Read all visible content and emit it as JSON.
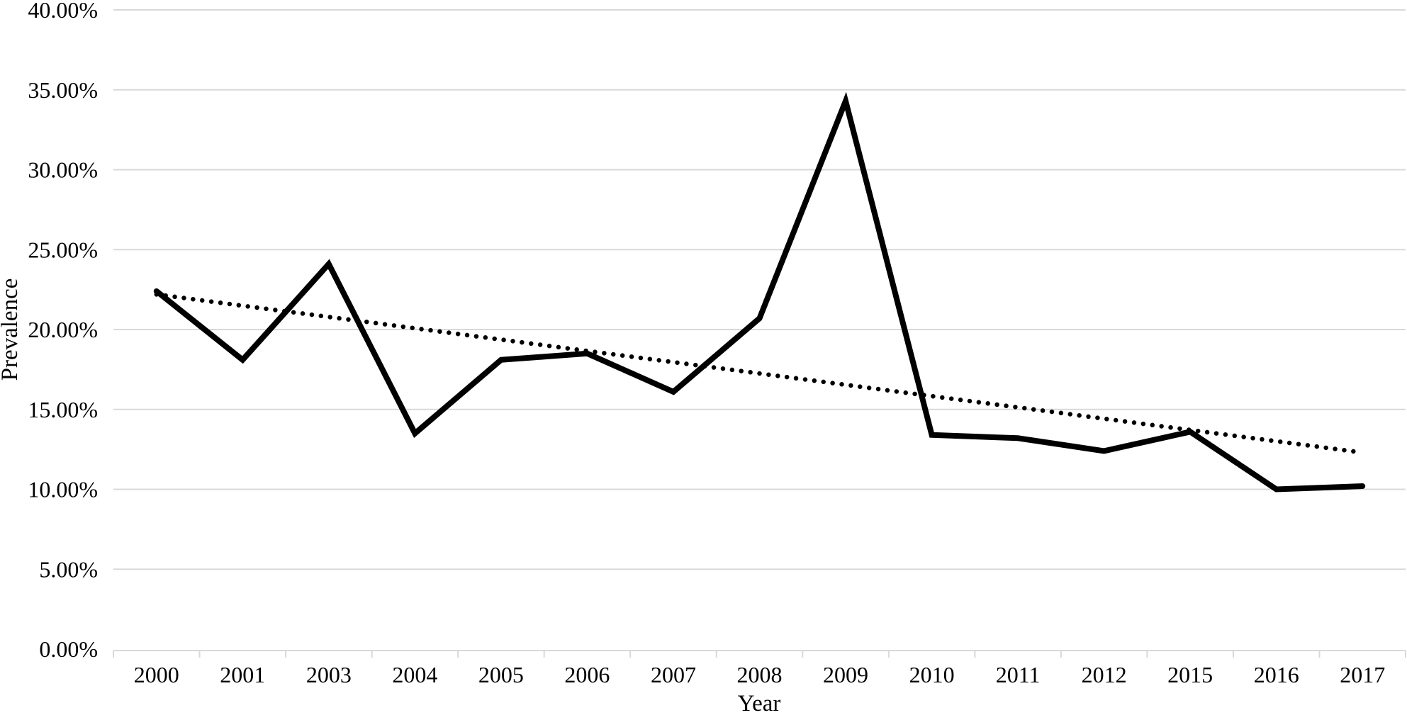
{
  "page": {
    "background": "#ffffff"
  },
  "chart_data": {
    "type": "line",
    "title": "",
    "xlabel": "Year",
    "ylabel": "Prevalence",
    "categories": [
      "2000",
      "2001",
      "2003",
      "2004",
      "2005",
      "2006",
      "2007",
      "2008",
      "2009",
      "2010",
      "2011",
      "2012",
      "2015",
      "2016",
      "2017"
    ],
    "series": [
      {
        "name": "Prevalence",
        "line_style": "solid",
        "color": "#000000",
        "values": [
          22.4,
          18.1,
          24.1,
          13.5,
          18.1,
          18.5,
          16.1,
          20.7,
          34.3,
          13.4,
          13.2,
          12.4,
          13.6,
          10.0,
          10.2
        ]
      },
      {
        "name": "Linear trendline",
        "line_style": "dotted",
        "color": "#000000",
        "values": [
          22.2,
          21.49,
          20.79,
          20.08,
          19.37,
          18.66,
          17.96,
          17.25,
          16.54,
          15.83,
          15.13,
          14.42,
          13.71,
          13.01,
          12.3
        ]
      }
    ],
    "ylim": [
      0,
      40
    ],
    "ytick_step": 5,
    "ytick_suffix": "%",
    "ytick_decimals": 2,
    "grid": "horizontal",
    "legend": "none",
    "grid_color": "#d9d9d9",
    "axis_color": "#d9d9d9",
    "text_color": "#000000"
  }
}
